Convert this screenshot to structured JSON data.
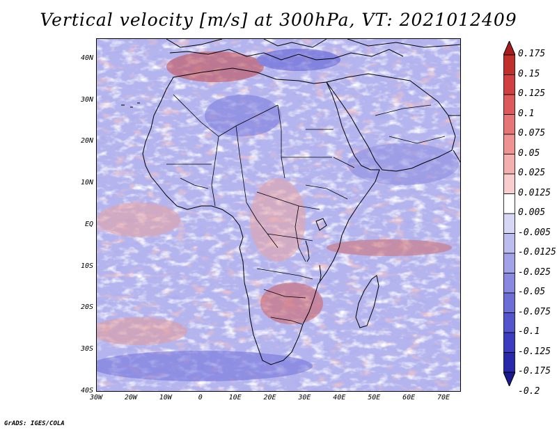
{
  "title": "Vertical velocity [m/s] at 300hPa, VT: 2021012409",
  "map": {
    "lon_range": [
      -30,
      75
    ],
    "lat_range": [
      -40,
      45
    ],
    "lat_labels": [
      "40N",
      "30N",
      "20N",
      "10N",
      "EQ",
      "10S",
      "20S",
      "30S",
      "40S"
    ],
    "lat_values": [
      40,
      30,
      20,
      10,
      0,
      -10,
      -20,
      -30,
      -40
    ],
    "lon_labels": [
      "30W",
      "20W",
      "10W",
      "0",
      "10E",
      "20E",
      "30E",
      "40E",
      "50E",
      "60E",
      "70E"
    ],
    "lon_values": [
      -30,
      -20,
      -10,
      0,
      10,
      20,
      30,
      40,
      50,
      60,
      70
    ]
  },
  "colorbar": {
    "labels": [
      "0.175",
      "0.15",
      "0.125",
      "0.1",
      "0.075",
      "0.05",
      "0.025",
      "0.0125",
      "0.005",
      "-0.005",
      "-0.0125",
      "-0.025",
      "-0.05",
      "-0.075",
      "-0.1",
      "-0.125",
      "-0.175",
      "-0.2"
    ],
    "colors": [
      "#a81d1d",
      "#c0302a",
      "#d04040",
      "#dc5a5a",
      "#e67676",
      "#ee9292",
      "#f4afaf",
      "#f9cdcd",
      "#ffffff",
      "#d6d6f5",
      "#bcbcef",
      "#a2a2e8",
      "#8888e0",
      "#6d6dd6",
      "#5454cc",
      "#3c3cbf",
      "#2828aa",
      "#1a1a8c"
    ]
  },
  "credit": "GrADS: IGES/COLA"
}
